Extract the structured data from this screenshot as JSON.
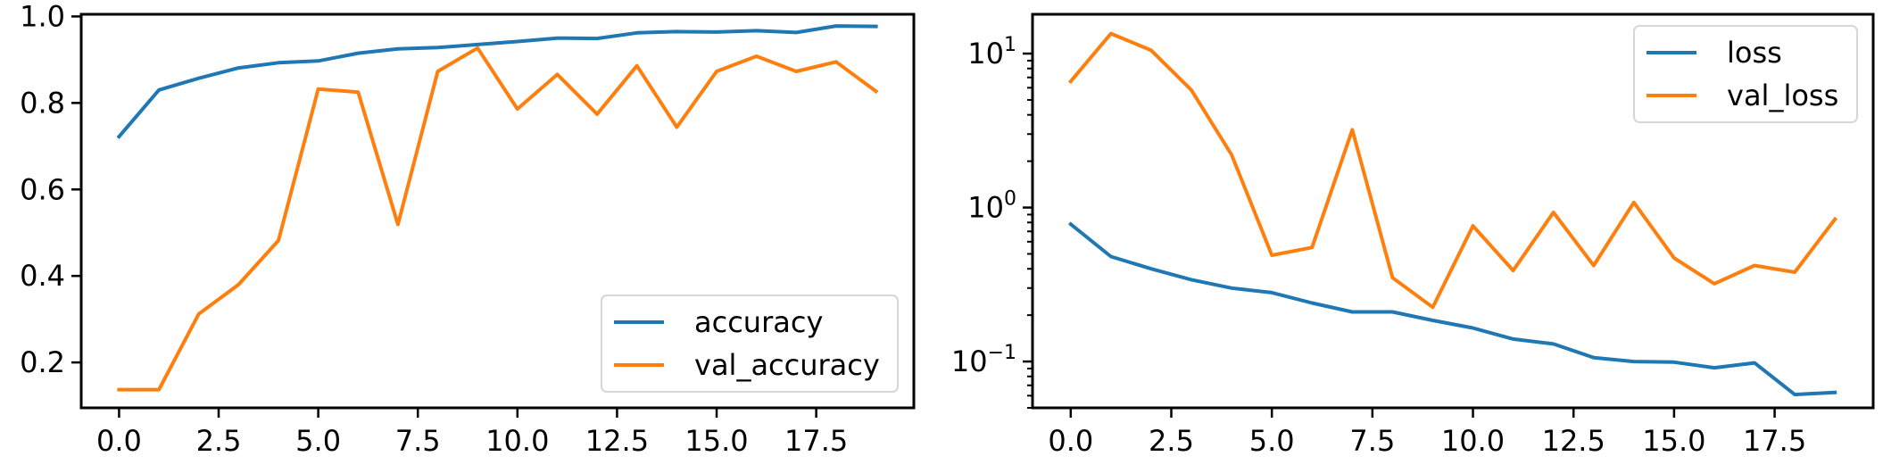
{
  "chart_data": [
    {
      "type": "line",
      "title": "",
      "xlabel": "",
      "ylabel": "",
      "xlim": [
        -0.95,
        19.95
      ],
      "ylim": [
        0.095,
        1.005
      ],
      "yscale": "linear",
      "grid": false,
      "legend_position": "lower-right",
      "x_ticks": [
        0,
        2.5,
        5,
        7.5,
        10,
        12.5,
        15,
        17.5
      ],
      "x_tick_labels": [
        "0.0",
        "2.5",
        "5.0",
        "7.5",
        "10.0",
        "12.5",
        "15.0",
        "17.5"
      ],
      "y_ticks": [
        0.2,
        0.4,
        0.6,
        0.8,
        1.0
      ],
      "y_tick_labels": [
        "0.2",
        "0.4",
        "0.6",
        "0.8",
        "1.0"
      ],
      "x": [
        0,
        1,
        2,
        3,
        4,
        5,
        6,
        7,
        8,
        9,
        10,
        11,
        12,
        13,
        14,
        15,
        16,
        17,
        18,
        19
      ],
      "series": [
        {
          "name": "accuracy",
          "color": "#1f77b4",
          "values": [
            0.722,
            0.83,
            0.857,
            0.881,
            0.893,
            0.897,
            0.915,
            0.925,
            0.928,
            0.935,
            0.942,
            0.95,
            0.949,
            0.962,
            0.965,
            0.964,
            0.967,
            0.963,
            0.978,
            0.977
          ]
        },
        {
          "name": "val_accuracy",
          "color": "#ff7f0e",
          "values": [
            0.137,
            0.137,
            0.312,
            0.38,
            0.482,
            0.832,
            0.825,
            0.519,
            0.873,
            0.927,
            0.786,
            0.866,
            0.774,
            0.886,
            0.744,
            0.873,
            0.908,
            0.873,
            0.895,
            0.827
          ]
        }
      ]
    },
    {
      "type": "line",
      "title": "",
      "xlabel": "",
      "ylabel": "",
      "xlim": [
        -0.95,
        19.95
      ],
      "ylim": [
        0.05,
        18
      ],
      "yscale": "log",
      "grid": false,
      "legend_position": "upper-right",
      "x_ticks": [
        0,
        2.5,
        5,
        7.5,
        10,
        12.5,
        15,
        17.5
      ],
      "x_tick_labels": [
        "0.0",
        "2.5",
        "5.0",
        "7.5",
        "10.0",
        "12.5",
        "15.0",
        "17.5"
      ],
      "y_ticks": [
        0.1,
        1,
        10
      ],
      "y_tick_labels": [
        {
          "base": "10",
          "exp": "−1"
        },
        {
          "base": "10",
          "exp": "0"
        },
        {
          "base": "10",
          "exp": "1"
        }
      ],
      "x": [
        0,
        1,
        2,
        3,
        4,
        5,
        6,
        7,
        8,
        9,
        10,
        11,
        12,
        13,
        14,
        15,
        16,
        17,
        18,
        19
      ],
      "series": [
        {
          "name": "loss",
          "color": "#1f77b4",
          "values": [
            0.78,
            0.48,
            0.4,
            0.34,
            0.3,
            0.28,
            0.24,
            0.21,
            0.21,
            0.185,
            0.165,
            0.14,
            0.13,
            0.106,
            0.1,
            0.099,
            0.091,
            0.098,
            0.061,
            0.063
          ]
        },
        {
          "name": "val_loss",
          "color": "#ff7f0e",
          "values": [
            6.6,
            13.5,
            10.5,
            5.8,
            2.2,
            0.49,
            0.55,
            3.2,
            0.35,
            0.225,
            0.76,
            0.39,
            0.93,
            0.42,
            1.08,
            0.47,
            0.32,
            0.42,
            0.38,
            0.84
          ]
        }
      ]
    }
  ]
}
